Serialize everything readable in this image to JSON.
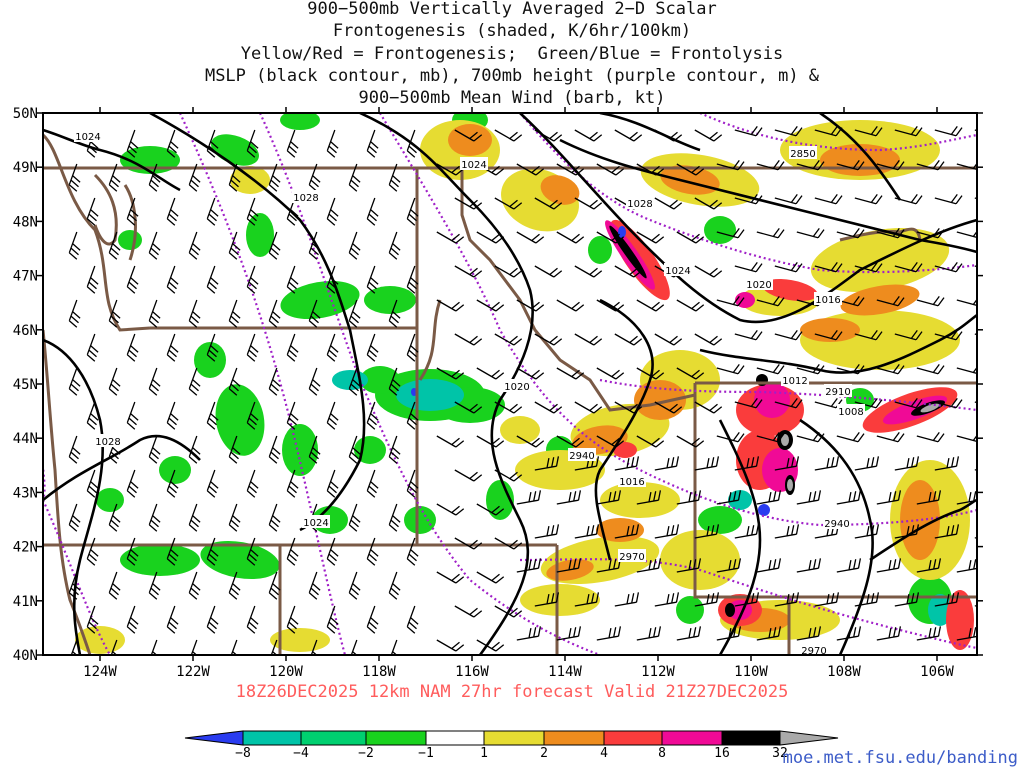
{
  "title_lines": [
    "900−500mb Vertically Averaged 2−D Scalar",
    "Frontogenesis (shaded, K/6hr/100km)",
    "Yellow/Red = Frontogenesis;  Green/Blue = Frontolysis",
    "MSLP (black contour, mb), 700mb height (purple contour, m) &",
    "900−500mb Mean Wind (barb, kt)"
  ],
  "valid_line": "18Z26DEC2025 12km NAM 27hr forecast Valid 21Z27DEC2025",
  "credit": "moe.met.fsu.edu/banding",
  "axes": {
    "lat_labels": [
      "50N",
      "49N",
      "48N",
      "47N",
      "46N",
      "45N",
      "44N",
      "43N",
      "42N",
      "41N",
      "40N"
    ],
    "lon_labels": [
      "124W",
      "122W",
      "120W",
      "118W",
      "116W",
      "114W",
      "112W",
      "110W",
      "108W",
      "106W"
    ]
  },
  "colorbar": {
    "labels": [
      "−8",
      "−4",
      "−2",
      "−1",
      "1",
      "2",
      "4",
      "8",
      "16",
      "32"
    ],
    "colors": [
      "#2a3cf0",
      "#00c4a8",
      "#00d070",
      "#19d21e",
      "#ffffff",
      "#e6dc32",
      "#ee8c1e",
      "#fa3c3c",
      "#f00a96",
      "#000000",
      "#aaaaaa"
    ]
  },
  "mslp_labels": [
    "1024",
    "1028",
    "1024",
    "1028",
    "1024",
    "1020",
    "1016",
    "1012",
    "1008",
    "1020",
    "1028",
    "1016",
    "1024"
  ],
  "height_labels": [
    "2850",
    "2910",
    "2940",
    "2940",
    "2970",
    "2970"
  ],
  "colors": {
    "pressure": "#000000",
    "height": "#a020c8",
    "borders": "#7a5a46",
    "valid_text": "#ff5c5c",
    "credit_text": "#3c5cc8"
  }
}
